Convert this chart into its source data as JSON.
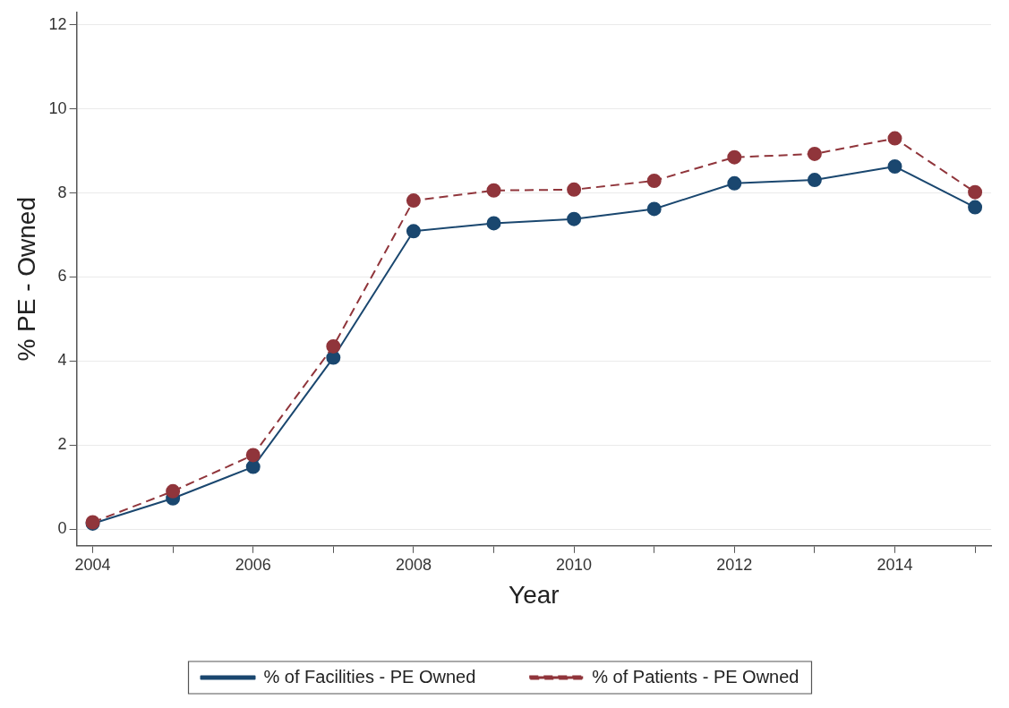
{
  "chart_data": {
    "type": "line",
    "xlabel": "Year",
    "ylabel": "% PE - Owned",
    "x": [
      2004,
      2005,
      2006,
      2007,
      2008,
      2009,
      2010,
      2011,
      2012,
      2013,
      2014,
      2015
    ],
    "series": [
      {
        "name": "% of Facilities - PE Owned",
        "color": "#1a476f",
        "line_style": "solid",
        "values": [
          0.13,
          0.73,
          1.48,
          4.08,
          7.09,
          7.28,
          7.38,
          7.62,
          8.23,
          8.31,
          8.63,
          7.66
        ]
      },
      {
        "name": "% of Patients - PE Owned",
        "color": "#90353b",
        "line_style": "dashed",
        "values": [
          0.16,
          0.9,
          1.76,
          4.35,
          7.82,
          8.06,
          8.08,
          8.29,
          8.85,
          8.93,
          9.3,
          8.02
        ]
      }
    ],
    "xlim": [
      2003.8,
      2015.2
    ],
    "xticks": [
      2004,
      {
        "value": 2005,
        "label": null
      },
      2006,
      {
        "value": 2007,
        "label": null
      },
      2008,
      {
        "value": 2009,
        "label": null
      },
      2010,
      {
        "value": 2011,
        "label": null
      },
      2012,
      {
        "value": 2013,
        "label": null
      },
      2014,
      {
        "value": 2015,
        "label": null
      }
    ],
    "ylim": [
      -0.4,
      12.3
    ],
    "yticks": [
      0,
      2,
      4,
      6,
      8,
      10,
      12
    ],
    "grid": "y",
    "legend": "bottom",
    "marker": "circle"
  }
}
